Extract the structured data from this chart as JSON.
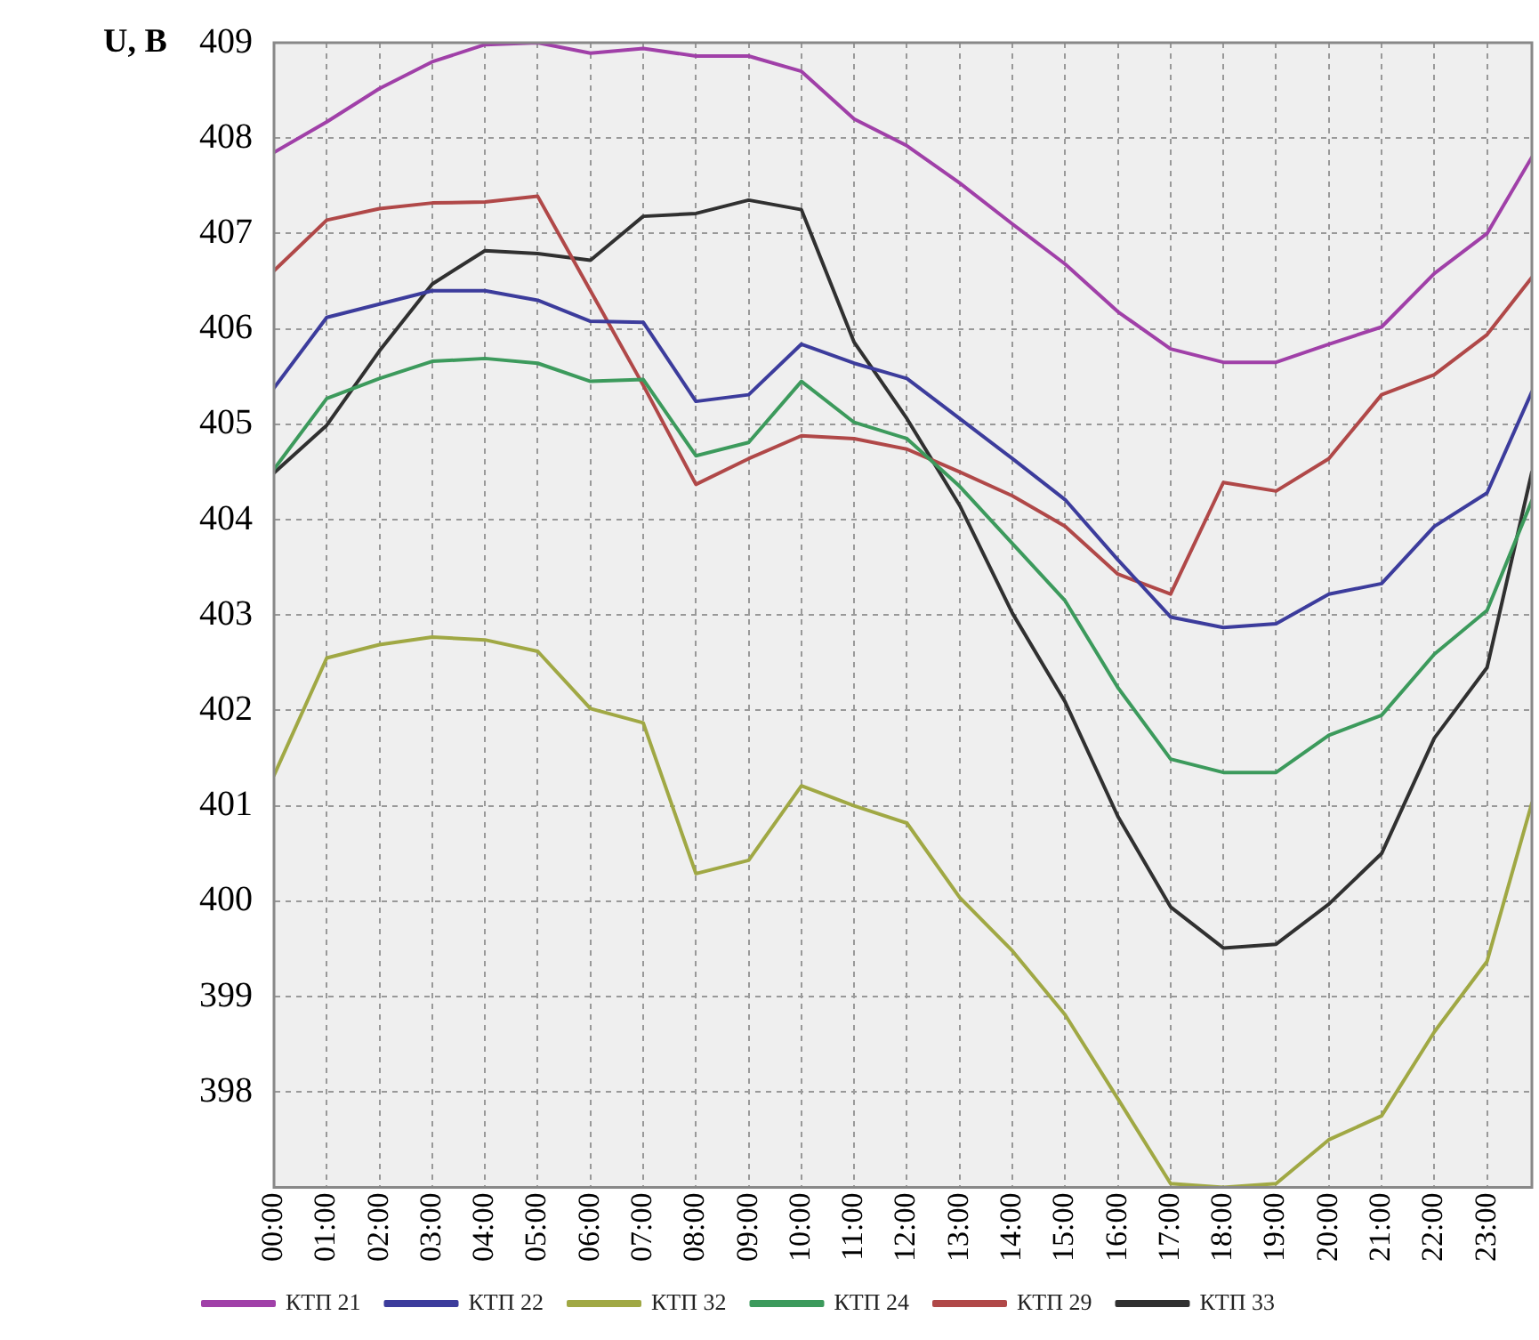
{
  "chart_data": {
    "type": "line",
    "ylabel": "U, В",
    "legend": "bottom",
    "grid": true,
    "marker": "none",
    "line_style": "solid",
    "x": [
      0,
      1,
      2,
      3,
      4,
      5,
      6,
      7,
      8,
      9,
      10,
      11,
      12,
      13,
      14,
      15,
      16,
      17,
      18,
      19,
      20,
      21,
      22,
      23,
      23.85
    ],
    "xlim": [
      0,
      23.85
    ],
    "xticks": [
      {
        "value": 0,
        "label": "00:00"
      },
      {
        "value": 1,
        "label": "01:00"
      },
      {
        "value": 2,
        "label": "02:00"
      },
      {
        "value": 3,
        "label": "03:00"
      },
      {
        "value": 4,
        "label": "04:00"
      },
      {
        "value": 5,
        "label": "05:00"
      },
      {
        "value": 6,
        "label": "06:00"
      },
      {
        "value": 7,
        "label": "07:00"
      },
      {
        "value": 8,
        "label": "08:00"
      },
      {
        "value": 9,
        "label": "09:00"
      },
      {
        "value": 10,
        "label": "10:00"
      },
      {
        "value": 11,
        "label": "11:00"
      },
      {
        "value": 12,
        "label": "12:00"
      },
      {
        "value": 13,
        "label": "13:00"
      },
      {
        "value": 14,
        "label": "14:00"
      },
      {
        "value": 15,
        "label": "15:00"
      },
      {
        "value": 16,
        "label": "16:00"
      },
      {
        "value": 17,
        "label": "17:00"
      },
      {
        "value": 18,
        "label": "18:00"
      },
      {
        "value": 19,
        "label": "19:00"
      },
      {
        "value": 20,
        "label": "20:00"
      },
      {
        "value": 21,
        "label": "21:00"
      },
      {
        "value": 22,
        "label": "22:00"
      },
      {
        "value": 23,
        "label": "23:00"
      }
    ],
    "ylim": [
      397,
      409
    ],
    "yticks": [
      {
        "value": 397,
        "label": null
      },
      398,
      399,
      400,
      401,
      402,
      403,
      404,
      405,
      406,
      407,
      408,
      409
    ],
    "series": [
      {
        "name": "КТП 21",
        "color": "#a040a8",
        "values": [
          407.85,
          408.17,
          408.52,
          408.8,
          408.98,
          409,
          408.89,
          408.94,
          408.86,
          408.86,
          408.7,
          408.2,
          407.92,
          407.53,
          407.1,
          406.68,
          406.18,
          405.79,
          405.65,
          405.65,
          405.84,
          406.02,
          406.58,
          407.0,
          407.8
        ]
      },
      {
        "name": "КТП 22",
        "color": "#3c3c9c",
        "values": [
          405.38,
          406.12,
          406.26,
          406.4,
          406.4,
          406.3,
          406.08,
          406.07,
          405.24,
          405.31,
          405.84,
          405.64,
          405.48,
          405.06,
          404.64,
          404.21,
          403.58,
          402.98,
          402.87,
          402.91,
          403.22,
          403.33,
          403.93,
          404.28,
          405.34
        ]
      },
      {
        "name": "КТП 32",
        "color": "#a0a844",
        "values": [
          401.32,
          402.55,
          402.69,
          402.77,
          402.74,
          402.62,
          402.02,
          401.87,
          400.29,
          400.43,
          401.21,
          401.0,
          400.82,
          400.04,
          399.48,
          398.81,
          397.93,
          397.04,
          397.0,
          397.04,
          397.5,
          397.75,
          398.63,
          399.37,
          401.03
        ]
      },
      {
        "name": "КТП 24",
        "color": "#3c9a5c",
        "values": [
          404.53,
          405.27,
          405.48,
          405.66,
          405.69,
          405.64,
          405.45,
          405.47,
          404.67,
          404.81,
          405.45,
          405.02,
          404.85,
          404.35,
          403.75,
          403.15,
          402.24,
          401.49,
          401.35,
          401.35,
          401.74,
          401.95,
          402.59,
          403.05,
          404.2
        ]
      },
      {
        "name": "КТП 29",
        "color": "#b04848",
        "values": [
          406.61,
          407.14,
          407.26,
          407.32,
          407.33,
          407.39,
          406.4,
          405.41,
          404.37,
          404.64,
          404.88,
          404.85,
          404.74,
          404.5,
          404.25,
          403.93,
          403.43,
          403.22,
          404.39,
          404.3,
          404.64,
          405.31,
          405.52,
          405.94,
          406.54
        ]
      },
      {
        "name": "КТП 33",
        "color": "#303030",
        "values": [
          404.49,
          404.99,
          405.77,
          406.47,
          406.82,
          406.79,
          406.72,
          407.18,
          407.21,
          407.35,
          407.25,
          405.86,
          405.06,
          404.15,
          403.02,
          402.09,
          400.89,
          399.94,
          399.51,
          399.55,
          399.97,
          400.5,
          401.71,
          402.45,
          404.5
        ]
      }
    ]
  }
}
